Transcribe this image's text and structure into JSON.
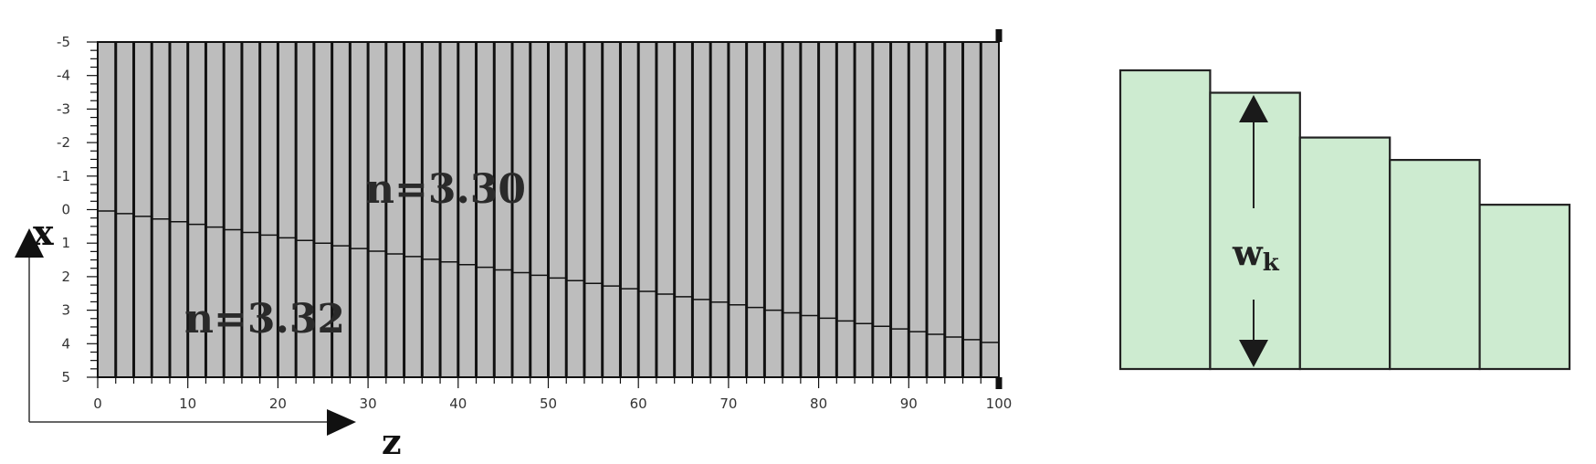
{
  "left_panel": {
    "x_ticks": [
      "0",
      "10",
      "20",
      "30",
      "40",
      "50",
      "60",
      "70",
      "80",
      "90",
      "100"
    ],
    "y_ticks": [
      "-5",
      "-4",
      "-3",
      "-2",
      "-1",
      "0",
      "1",
      "2",
      "3",
      "4",
      "5"
    ],
    "region_upper_label": "n=3.30",
    "region_lower_label": "n=3.32",
    "x_axis_letter": "z",
    "y_axis_letter": "x",
    "segment_count": 50,
    "boundary_line": {
      "z_start": 0,
      "x_start": 0,
      "z_end": 100,
      "x_end": 4
    },
    "z_range": [
      0,
      100
    ],
    "x_range": [
      -5,
      5
    ],
    "colors": {
      "fill": "#bdbdbd",
      "lines": "#111111"
    }
  },
  "right_panel": {
    "label_main": "w",
    "label_sub": "k",
    "block_levels": [
      1.0,
      0.925,
      0.775,
      0.7,
      0.55
    ],
    "colors": {
      "fill": "#cdebd0",
      "outline": "#222222"
    }
  }
}
